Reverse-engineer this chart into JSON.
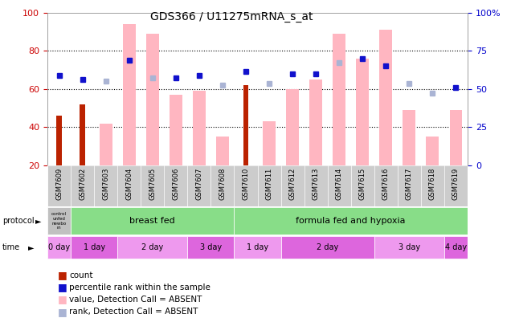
{
  "title": "GDS366 / U11275mRNA_s_at",
  "samples": [
    "GSM7609",
    "GSM7602",
    "GSM7603",
    "GSM7604",
    "GSM7605",
    "GSM7606",
    "GSM7607",
    "GSM7608",
    "GSM7610",
    "GSM7611",
    "GSM7612",
    "GSM7613",
    "GSM7614",
    "GSM7615",
    "GSM7616",
    "GSM7617",
    "GSM7618",
    "GSM7619"
  ],
  "count_values": [
    46,
    52,
    null,
    null,
    null,
    null,
    null,
    null,
    62,
    null,
    null,
    null,
    null,
    null,
    null,
    null,
    null,
    null
  ],
  "pink_bar_values": [
    null,
    null,
    42,
    94,
    89,
    57,
    59,
    35,
    null,
    43,
    60,
    65,
    89,
    76,
    91,
    49,
    35,
    49
  ],
  "dark_blue_squares": [
    67,
    65,
    null,
    75,
    null,
    66,
    67,
    null,
    69,
    null,
    68,
    68,
    null,
    76,
    72,
    null,
    null,
    61
  ],
  "light_blue_squares": [
    null,
    null,
    64,
    null,
    66,
    null,
    null,
    62,
    null,
    63,
    null,
    null,
    74,
    null,
    null,
    63,
    58,
    null
  ],
  "ylim": [
    20,
    100
  ],
  "left_yticks": [
    20,
    40,
    60,
    80,
    100
  ],
  "right_ytick_labels": [
    "0",
    "25",
    "50",
    "75",
    "100%"
  ],
  "right_ytick_pos": [
    20,
    40,
    60,
    80,
    100
  ],
  "dotted_lines": [
    40,
    60,
    80
  ],
  "pink_bar_color": "#ffb6c1",
  "count_bar_color": "#bb2200",
  "dark_blue_color": "#1111cc",
  "light_blue_color": "#aab4d4",
  "bg_color": "#ffffff",
  "axis_color_left": "#cc0000",
  "axis_color_right": "#0000cc",
  "label_band_color": "#cccccc",
  "protocol_control_color": "#c0c0c0",
  "protocol_green_color": "#88dd88",
  "time_dark_color": "#dd66dd",
  "time_light_color": "#ee99ee"
}
